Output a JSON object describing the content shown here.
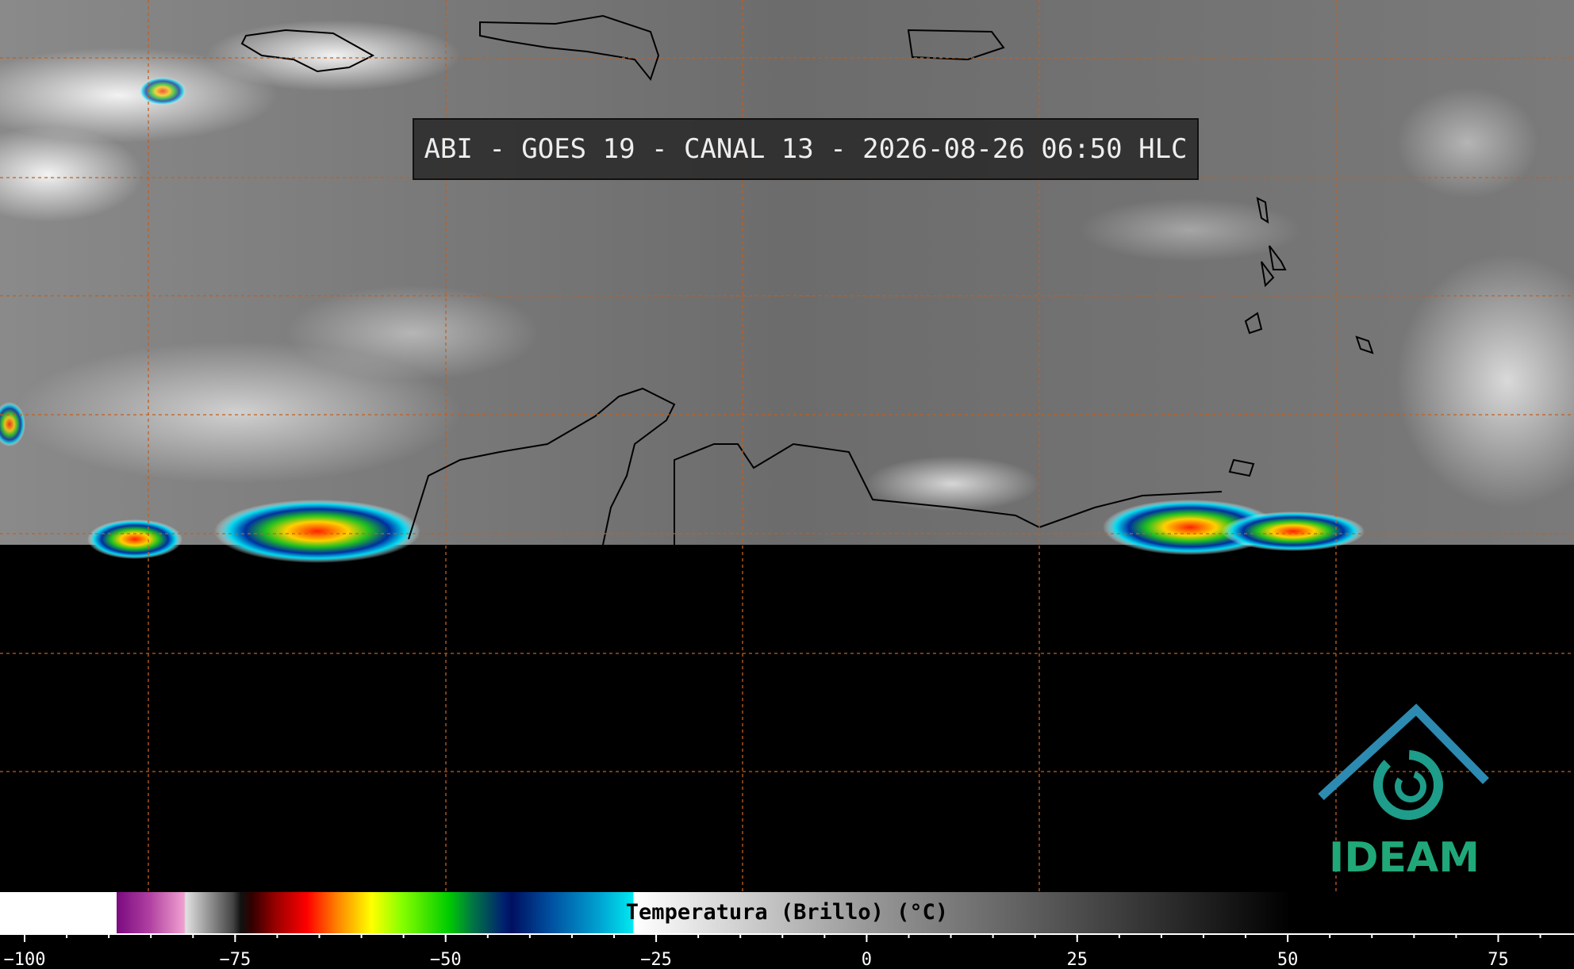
{
  "header": {
    "title": "ABI - GOES 19 - CANAL 13 - 2026-08-26 06:50 HLC"
  },
  "colorbar": {
    "label": "Temperatura (Brillo) (°C)",
    "min": -100,
    "max": 84,
    "minor_step": 5,
    "ticks": [
      {
        "value": -100,
        "label": "−100"
      },
      {
        "value": -75,
        "label": "−75"
      },
      {
        "value": -50,
        "label": "−50"
      },
      {
        "value": -25,
        "label": "−25"
      },
      0,
      25,
      50,
      75
    ]
  },
  "logo": {
    "text": "IDEAM"
  }
}
